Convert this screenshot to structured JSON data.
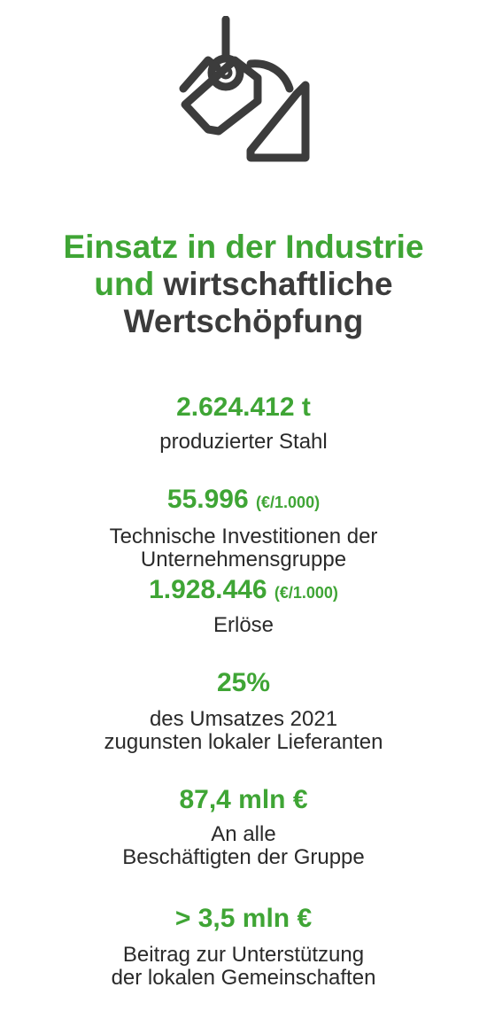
{
  "icon": "steel-ladle-icon",
  "colors": {
    "accent": "#3fa535",
    "text": "#3c3c3c"
  },
  "title": {
    "line1_green": "Einsatz in der Industrie",
    "line2_green": "und",
    "line2_dark": " wirtschaftliche",
    "line3_dark": "Wertschöpfung"
  },
  "stats": [
    {
      "value": "2.624.412 t",
      "unit": "",
      "desc": "produzierter Stahl"
    },
    {
      "value": "55.996",
      "unit": "(€/1.000)",
      "desc": "Technische Investitionen der\nUnternehmensgruppe"
    },
    {
      "value": "1.928.446",
      "unit": "(€/1.000)",
      "desc": "Erlöse"
    },
    {
      "value": "25%",
      "unit": "",
      "desc": "des Umsatzes 2021\nzugunsten lokaler Lieferanten"
    },
    {
      "value": "87,4 mln €",
      "unit": "",
      "desc": "An alle\nBeschäftigten der Gruppe"
    },
    {
      "value": "> 3,5 mln €",
      "unit": "",
      "desc": "Beitrag zur Unterstützung\nder lokalen Gemeinschaften"
    }
  ]
}
